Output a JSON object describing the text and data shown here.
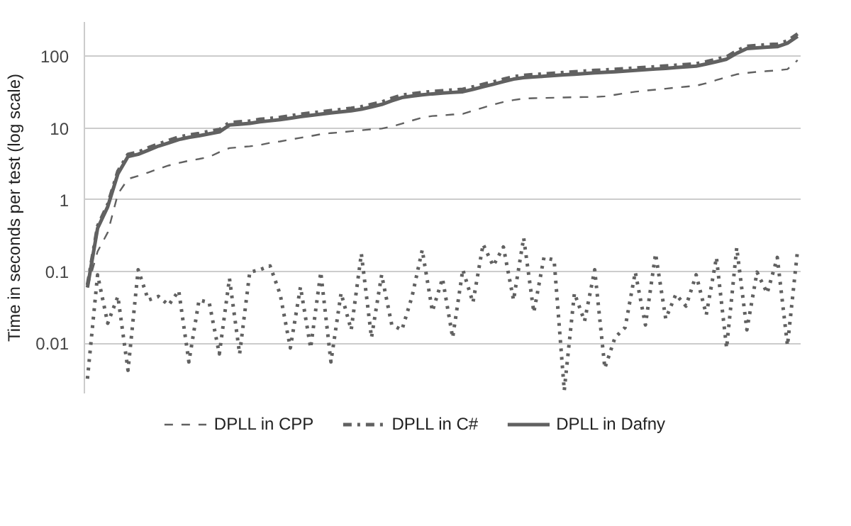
{
  "chart_data": {
    "type": "line",
    "ylabel": "Time in seconds per test (log scale)",
    "log": "y",
    "ylim": [
      0.002,
      300
    ],
    "yticks": [
      0.01,
      0.1,
      1,
      10,
      100
    ],
    "tick_labels": "y",
    "grid": "y",
    "legend": "bottom",
    "marker": "none",
    "categories": [
      null,
      null,
      null,
      null,
      null,
      null,
      null,
      null,
      null,
      null,
      null,
      null,
      null,
      null,
      null,
      null,
      null,
      null,
      null,
      null,
      null,
      null,
      null,
      null,
      null,
      null,
      null,
      null,
      null,
      null,
      null,
      null,
      null,
      null,
      null,
      null,
      null,
      null,
      null,
      null,
      null,
      null,
      null,
      null,
      null,
      null,
      null,
      null,
      null,
      null,
      null,
      null,
      null,
      null,
      null,
      null,
      null,
      null,
      null,
      null,
      null,
      null,
      null,
      null,
      null,
      null,
      null,
      null,
      null,
      null,
      null
    ],
    "series": [
      {
        "name": "DPLL in CPP",
        "color": "#616161",
        "line_style": "dashed",
        "values": [
          0.06,
          0.19,
          0.35,
          1.2,
          1.95,
          2.15,
          2.4,
          2.7,
          3.0,
          3.25,
          3.5,
          3.7,
          3.95,
          4.6,
          5.25,
          5.4,
          5.55,
          5.8,
          6.2,
          6.5,
          6.9,
          7.3,
          7.7,
          8.2,
          8.5,
          8.7,
          9.0,
          9.3,
          9.6,
          9.8,
          10.5,
          11.5,
          12.7,
          14.0,
          14.7,
          15.0,
          15.4,
          15.7,
          17.4,
          19.2,
          21.2,
          23.0,
          24.5,
          25.7,
          26,
          26.2,
          26.4,
          26.6,
          26.8,
          27,
          27,
          27.6,
          29,
          30.5,
          32,
          33.2,
          34.2,
          35.3,
          36.5,
          37.7,
          38.8,
          42,
          46.5,
          51,
          56,
          58.5,
          60.5,
          62,
          63.5,
          66,
          88
        ]
      },
      {
        "name": "DPLL in C#",
        "color": "#616161",
        "line_style": "dashdot",
        "values": [
          0.065,
          0.43,
          0.86,
          2.5,
          4.3,
          4.6,
          5.3,
          6.0,
          6.7,
          7.5,
          8.0,
          8.4,
          9.0,
          9.5,
          11.9,
          12.2,
          12.5,
          13.2,
          13.6,
          14.1,
          14.8,
          15.6,
          16.2,
          16.8,
          17.5,
          18.1,
          18.8,
          19.8,
          21.3,
          23,
          25.9,
          28.7,
          30,
          31.3,
          32.3,
          33,
          33.8,
          34.6,
          37.4,
          40.5,
          44,
          47.8,
          51.8,
          54.2,
          55.5,
          56.8,
          58.1,
          59.4,
          60.7,
          62.1,
          63.5,
          64.4,
          65.6,
          67,
          68.5,
          70,
          71.6,
          73.2,
          75,
          76.7,
          78.6,
          84,
          91,
          98,
          119,
          138,
          141,
          145,
          147,
          164,
          205
        ]
      },
      {
        "name": "DPLL in Dafny",
        "color": "#616161",
        "line_style": "solid",
        "values": [
          0.06,
          0.4,
          0.8,
          2.3,
          4.0,
          4.3,
          4.9,
          5.6,
          6.2,
          6.9,
          7.4,
          7.8,
          8.3,
          8.8,
          11.0,
          11.3,
          11.6,
          12.2,
          12.6,
          13.1,
          13.7,
          14.4,
          15.0,
          15.6,
          16.2,
          16.8,
          17.4,
          18.3,
          19.7,
          21.3,
          24,
          26.6,
          27.8,
          29,
          29.9,
          30.6,
          31.3,
          32,
          34.6,
          37.5,
          40.7,
          44.3,
          48,
          50.2,
          51.4,
          52.6,
          53.8,
          55,
          56.2,
          57.5,
          58.8,
          59.6,
          60.7,
          62,
          63.4,
          64.8,
          66.3,
          67.8,
          69.4,
          71,
          72.8,
          78,
          84,
          91,
          110,
          128,
          131,
          134,
          136,
          152,
          190
        ]
      },
      {
        "color": "#616161",
        "line_style": "dotted",
        "values": [
          0.0032,
          0.09,
          0.019,
          0.045,
          0.0042,
          0.106,
          0.04,
          0.045,
          0.034,
          0.054,
          0.0055,
          0.04,
          0.037,
          0.0071,
          0.08,
          0.0071,
          0.098,
          0.106,
          0.12,
          0.048,
          0.0086,
          0.061,
          0.0086,
          0.098,
          0.0055,
          0.05,
          0.0154,
          0.177,
          0.012,
          0.09,
          0.018,
          0.0154,
          0.045,
          0.2,
          0.028,
          0.08,
          0.012,
          0.106,
          0.037,
          0.24,
          0.12,
          0.22,
          0.04,
          0.295,
          0.027,
          0.157,
          0.145,
          0.0022,
          0.05,
          0.0203,
          0.106,
          0.0045,
          0.012,
          0.0166,
          0.098,
          0.018,
          0.177,
          0.022,
          0.048,
          0.033,
          0.09,
          0.025,
          0.157,
          0.0086,
          0.215,
          0.0154,
          0.098,
          0.05,
          0.157,
          0.0093,
          0.2
        ]
      }
    ]
  }
}
